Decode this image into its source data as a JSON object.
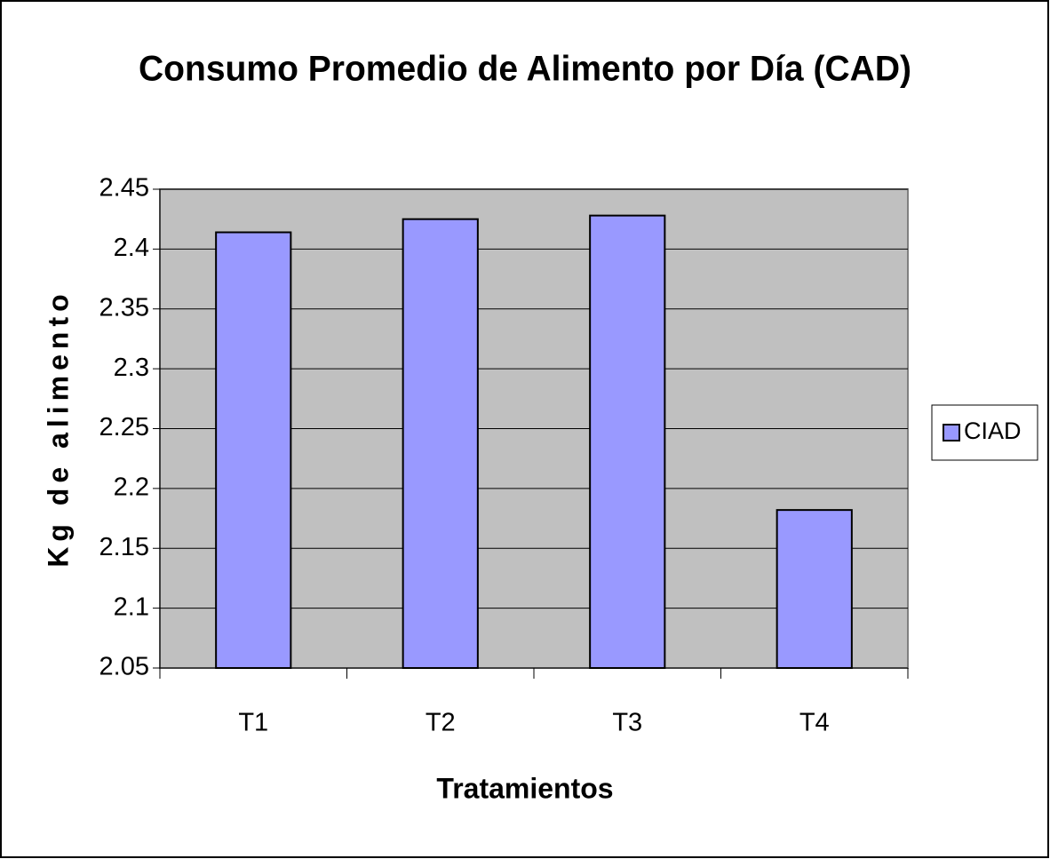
{
  "chart_data": {
    "type": "bar",
    "title": "Consumo Promedio de Alimento por Día (CAD)",
    "x_label": "Tratamientos",
    "y_label": "Kg de alimento",
    "categories": [
      "T1",
      "T2",
      "T3",
      "T4"
    ],
    "series": [
      {
        "name": "CIAD",
        "color": "#9999ff",
        "values": [
          2.414,
          2.425,
          2.428,
          2.182
        ]
      }
    ],
    "ylim": [
      2.05,
      2.45
    ],
    "yticks": [
      2.05,
      2.1,
      2.15,
      2.2,
      2.25,
      2.3,
      2.35,
      2.4,
      2.45
    ],
    "grid": true,
    "legend": "right"
  }
}
